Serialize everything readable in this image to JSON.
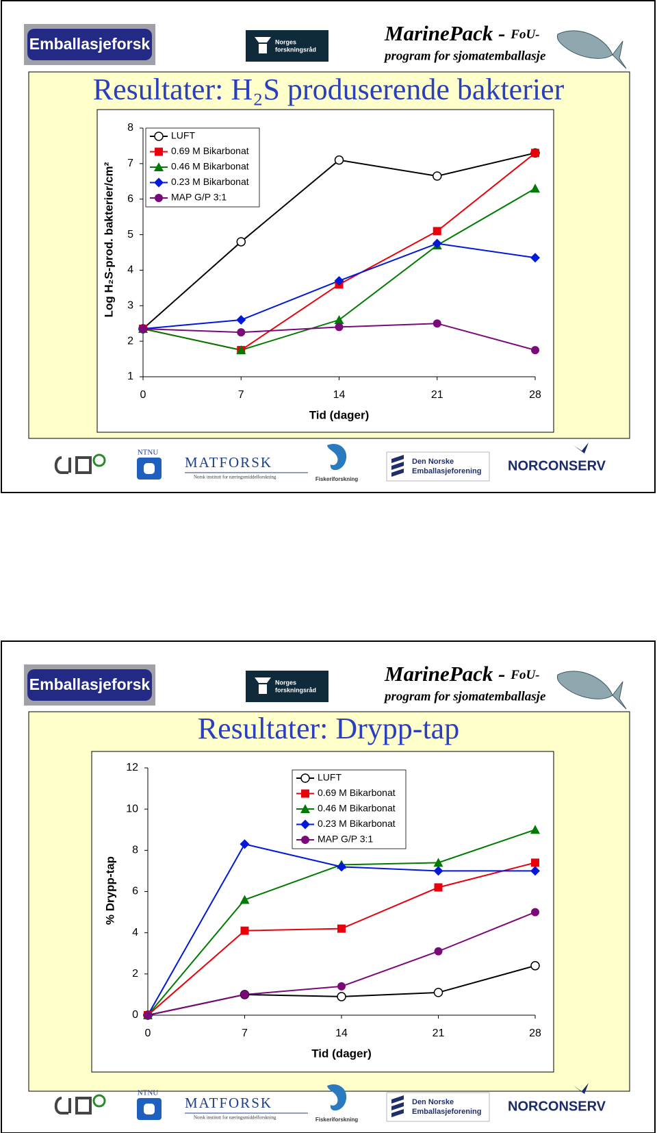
{
  "header": {
    "logo_left": "Emballasjeforsk",
    "funder_line1": "Norges",
    "funder_line2": "forskningsråd",
    "program_title": "MarinePack - ",
    "program_suffix": "FoU-",
    "program_subtitle": "program for sjomatemballasje"
  },
  "footer": {
    "ntnu": "NTNU",
    "matforsk": "MATFORSK",
    "matforsk_sub": "Norsk institutt for næringsmiddelforskning",
    "fiskeri": "Fiskeriforskning",
    "emb_line1": "Den Norske",
    "emb_line2": "Emballasjeforening",
    "norconserv": "NORCONSERV"
  },
  "chart_data": [
    {
      "type": "line",
      "title": "Resultater: H₂S produserende bakterier",
      "y_label": "Log H₂S-prod. bakterier/cm²",
      "x_label": "Tid (dager)",
      "x": [
        0,
        7,
        14,
        21,
        28
      ],
      "xlim": [
        0,
        28
      ],
      "xticks": [
        0,
        7,
        14,
        21,
        28
      ],
      "ylim": [
        1,
        8
      ],
      "yticks": [
        1,
        2,
        3,
        4,
        5,
        6,
        7,
        8
      ],
      "grid": false,
      "legend": "upper left",
      "series": [
        {
          "name": "LUFT",
          "color": "#000000",
          "marker": "open-circle",
          "values": [
            2.35,
            4.8,
            7.1,
            6.65,
            7.3
          ]
        },
        {
          "name": "0.69 M Bikarbonat",
          "color": "#e8000b",
          "marker": "square",
          "values": [
            2.35,
            1.75,
            3.6,
            5.1,
            7.3
          ]
        },
        {
          "name": "0.46 M Bikarbonat",
          "color": "#007a00",
          "marker": "triangle",
          "values": [
            2.35,
            1.75,
            2.6,
            4.7,
            6.3
          ]
        },
        {
          "name": "0.23 M Bikarbonat",
          "color": "#0018d8",
          "marker": "diamond",
          "values": [
            2.35,
            2.6,
            3.7,
            4.75,
            4.35
          ]
        },
        {
          "name": "MAP G/P 3:1",
          "color": "#7a0a7a",
          "marker": "circle",
          "values": [
            2.35,
            2.25,
            2.4,
            2.5,
            1.75
          ]
        }
      ]
    },
    {
      "type": "line",
      "title": "Resultater: Drypp-tap",
      "y_label": "% Drypp-tap",
      "x_label": "Tid (dager)",
      "x": [
        0,
        7,
        14,
        21,
        28
      ],
      "xlim": [
        0,
        28
      ],
      "xticks": [
        0,
        7,
        14,
        21,
        28
      ],
      "ylim": [
        0,
        12
      ],
      "yticks": [
        0,
        2,
        4,
        6,
        8,
        10,
        12
      ],
      "grid": false,
      "legend": "upper center",
      "series": [
        {
          "name": "LUFT",
          "color": "#000000",
          "marker": "open-circle",
          "values": [
            0,
            1.0,
            0.9,
            1.1,
            2.4
          ]
        },
        {
          "name": "0.69 M Bikarbonat",
          "color": "#e8000b",
          "marker": "square",
          "values": [
            0,
            4.1,
            4.2,
            6.2,
            7.4
          ]
        },
        {
          "name": "0.46 M Bikarbonat",
          "color": "#007a00",
          "marker": "triangle",
          "values": [
            0,
            5.6,
            7.3,
            7.4,
            9.0
          ]
        },
        {
          "name": "0.23 M Bikarbonat",
          "color": "#0018d8",
          "marker": "diamond",
          "values": [
            0,
            8.3,
            7.2,
            7.0,
            7.0
          ]
        },
        {
          "name": "MAP G/P 3:1",
          "color": "#7a0a7a",
          "marker": "circle",
          "values": [
            0,
            1.0,
            1.4,
            3.1,
            5.0
          ]
        }
      ]
    }
  ]
}
